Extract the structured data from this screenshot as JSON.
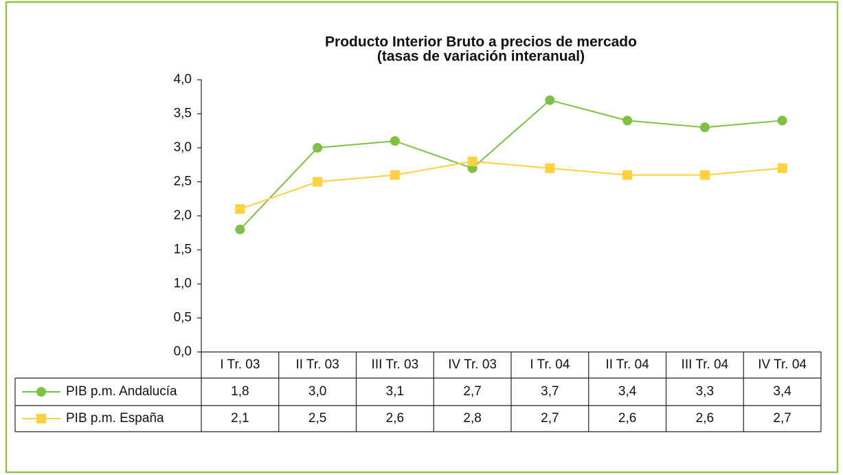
{
  "chart_data": {
    "type": "line",
    "title": "Producto Interior Bruto a precios de mercado",
    "subtitle": "(tasas de variación interanual)",
    "categories": [
      "I Tr. 03",
      "II Tr. 03",
      "III Tr. 03",
      "IV Tr. 03",
      "I Tr. 04",
      "II Tr. 04",
      "III Tr. 04",
      "IV Tr. 04"
    ],
    "series": [
      {
        "name": "PIB p.m. Andalucía",
        "color": "#7cc242",
        "marker": "circle",
        "values": [
          1.8,
          3.0,
          3.1,
          2.7,
          3.7,
          3.4,
          3.3,
          3.4
        ],
        "value_labels": [
          "1,8",
          "3,0",
          "3,1",
          "2,7",
          "3,7",
          "3,4",
          "3,3",
          "3,4"
        ]
      },
      {
        "name": "PIB p.m. España",
        "color": "#ffd13f",
        "marker": "square",
        "values": [
          2.1,
          2.5,
          2.6,
          2.8,
          2.7,
          2.6,
          2.6,
          2.7
        ],
        "value_labels": [
          "2,1",
          "2,5",
          "2,6",
          "2,8",
          "2,7",
          "2,6",
          "2,6",
          "2,7"
        ]
      }
    ],
    "ylim": [
      0,
      4
    ],
    "yticks": [
      {
        "value": 0,
        "label": "0,0"
      },
      {
        "value": 0.5,
        "label": "0,5"
      },
      {
        "value": 1,
        "label": "1,0"
      },
      {
        "value": 1.5,
        "label": "1,5"
      },
      {
        "value": 2,
        "label": "2,0"
      },
      {
        "value": 2.5,
        "label": "2,5"
      },
      {
        "value": 3,
        "label": "3,0"
      },
      {
        "value": 3.5,
        "label": "3,5"
      },
      {
        "value": 4,
        "label": "4,0"
      }
    ],
    "grid": false
  }
}
